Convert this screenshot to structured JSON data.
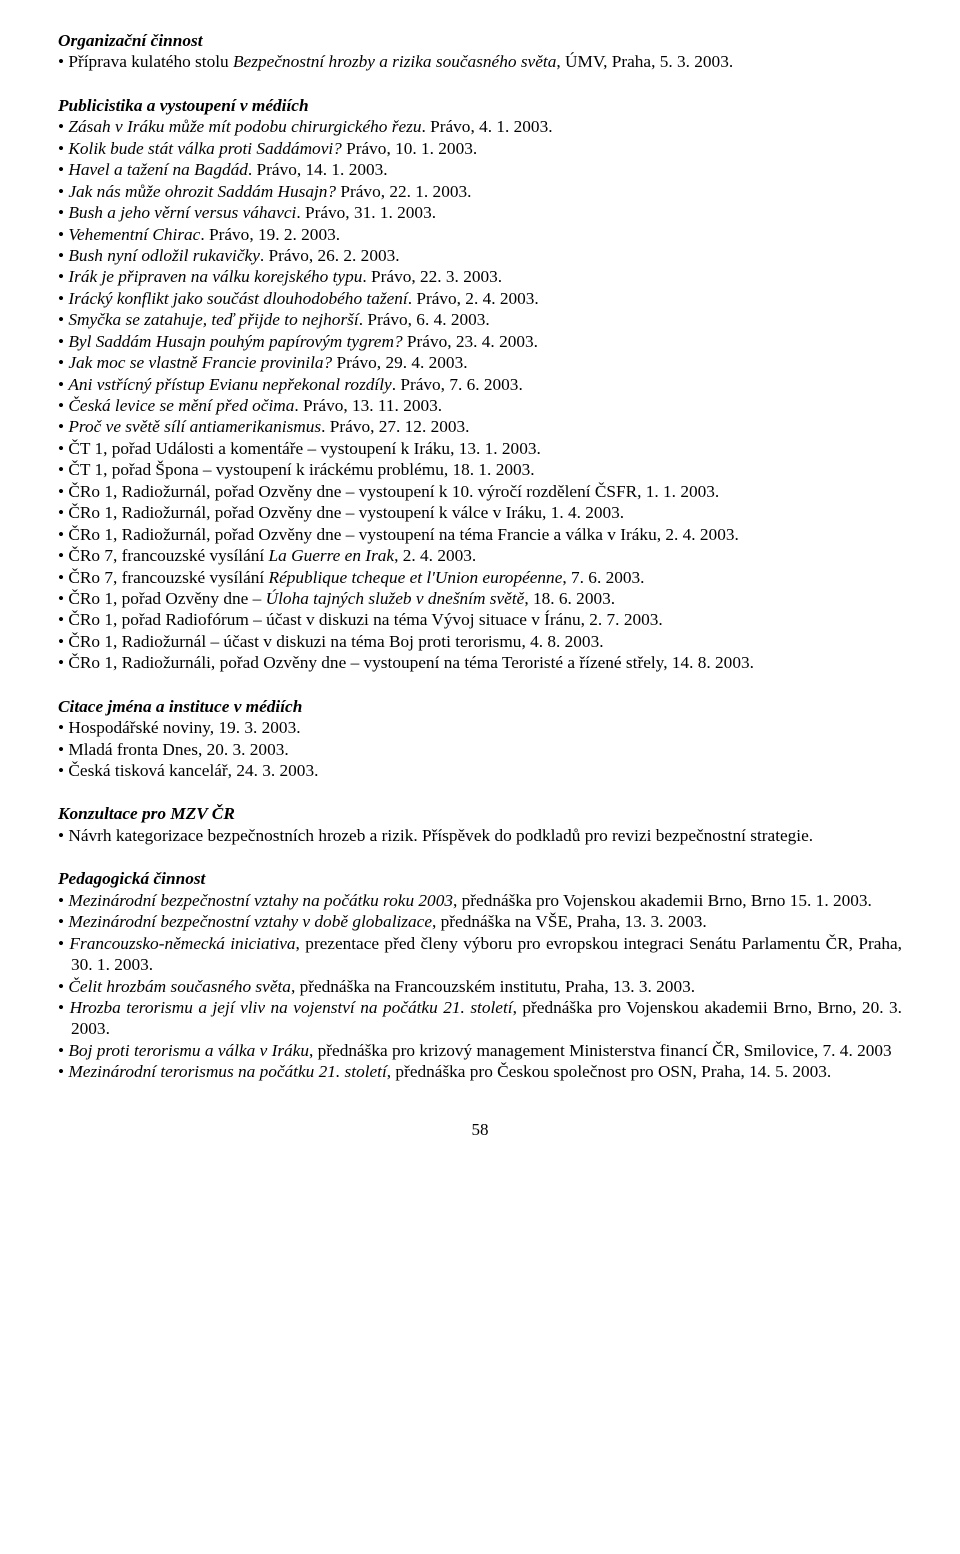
{
  "sections": {
    "org": {
      "heading": "Organizační činnost",
      "items": [
        "• Příprava kulatého stolu <i>Bezpečnostní hrozby a rizika současného světa</i>, ÚMV, Praha, 5. 3. 2003."
      ]
    },
    "media": {
      "heading": "Publicistika a vystoupení v médiích",
      "items": [
        "• <i>Zásah v Iráku může mít podobu chirurgického řezu</i>. Právo, 4. 1. 2003.",
        "• <i>Kolik bude stát válka proti Saddámovi?</i> Právo, 10. 1. 2003.",
        "• <i>Havel a tažení na Bagdád</i>. Právo, 14. 1. 2003.",
        "• <i>Jak nás může ohrozit Saddám Husajn?</i> Právo, 22. 1. 2003.",
        "• <i>Bush a jeho věrní versus váhavci</i>. Právo, 31. 1. 2003.",
        "• <i>Vehementní Chirac</i>. Právo, 19. 2. 2003.",
        "• <i>Bush nyní odložil rukavičky</i>. Právo, 26. 2. 2003.",
        "• <i>Irák je připraven na válku korejského typu</i>. Právo, 22. 3. 2003.",
        "• <i>Irácký konflikt jako součást dlouhodobého tažení</i>. Právo, 2. 4. 2003.",
        "• <i>Smyčka se zatahuje, teď přijde to nejhorší</i>. Právo, 6. 4. 2003.",
        "• <i>Byl Saddám Husajn pouhým papírovým tygrem?</i> Právo, 23. 4. 2003.",
        "• <i>Jak moc se vlastně Francie provinila?</i> Právo, 29. 4. 2003.",
        "• <i>Ani vstřícný přístup Evianu nepřekonal rozdíly</i>. Právo, 7. 6. 2003.",
        "• <i>Česká levice se mění před očima</i>. Právo, 13. 11. 2003.",
        "• <i>Proč ve světě sílí antiamerikanismus</i>. Právo, 27. 12. 2003.",
        "• ČT 1, pořad Události a komentáře – vystoupení k Iráku, 13. 1. 2003.",
        "• ČT 1, pořad Špona – vystoupení k iráckému problému, 18. 1. 2003.",
        "• ČRo 1, Radiožurnál, pořad Ozvěny dne – vystoupení k 10. výročí rozdělení ČSFR, 1. 1. 2003.",
        "• ČRo 1, Radiožurnál, pořad Ozvěny dne – vystoupení k válce v Iráku, 1. 4. 2003.",
        "• ČRo 1, Radiožurnál, pořad Ozvěny dne – vystoupení na téma Francie a válka v Iráku, 2. 4. 2003.",
        "• ČRo 7, francouzské vysílání <i>La Guerre en Irak</i>, 2. 4. 2003.",
        "• ČRo 7, francouzské vysílání <i>République tcheque et l'Union européenne</i>, 7. 6. 2003.",
        "• ČRo 1, pořad Ozvěny dne – <i>Úloha tajných služeb v dnešním světě</i>, 18. 6. 2003.",
        "• ČRo 1, pořad Radiofórum – účast v diskuzi na téma Vývoj situace v Íránu, 2. 7. 2003.",
        "• ČRo 1, Radiožurnál – účast v diskuzi na téma Boj proti terorismu, 4. 8. 2003.",
        "• ČRo 1, Radiožurnáli, pořad Ozvěny dne – vystoupení na téma Teroristé a řízené střely, 14. 8. 2003."
      ]
    },
    "citations": {
      "heading": "Citace jména a instituce v médiích",
      "items": [
        "• Hospodářské noviny, 19. 3. 2003.",
        "• Mladá fronta Dnes, 20. 3. 2003.",
        "• Česká tisková kancelář, 24. 3. 2003."
      ]
    },
    "consult": {
      "heading": "Konzultace pro MZV ČR",
      "items": [
        "• Návrh kategorizace bezpečnostních hrozeb a rizik. Příspěvek do podkladů pro revizi bezpečnostní strategie."
      ]
    },
    "teaching": {
      "heading": "Pedagogická činnost",
      "items": [
        "• <i>Mezinárodní bezpečnostní vztahy na počátku roku 2003</i>, přednáška pro Vojenskou akademii Brno, Brno 15. 1. 2003.",
        "• <i>Mezinárodní bezpečnostní vztahy v době globalizace</i>, přednáška na VŠE, Praha, 13. 3. 2003.",
        "• <i>Francouzsko-německá iniciativa</i>, prezentace před členy výboru pro evropskou integraci Senátu Parlamentu ČR, Praha, 30. 1. 2003.",
        "• <i>Čelit hrozbám současného světa</i>, přednáška na Francouzském institutu, Praha, 13. 3. 2003.",
        "• <i>Hrozba terorismu a její vliv na vojenství na počátku 21. století</i>, přednáška pro Vojenskou akademii Brno, Brno, 20. 3. 2003.",
        "• <i>Boj proti terorismu a válka v Iráku</i>, přednáška pro krizový management Ministerstva financí ČR, Smilovice, 7. 4. 2003",
        "• <i>Mezinárodní terorismus na počátku 21. století</i>, přednáška pro Českou společnost pro OSN, Praha, 14. 5. 2003."
      ]
    }
  },
  "page_number": "58"
}
